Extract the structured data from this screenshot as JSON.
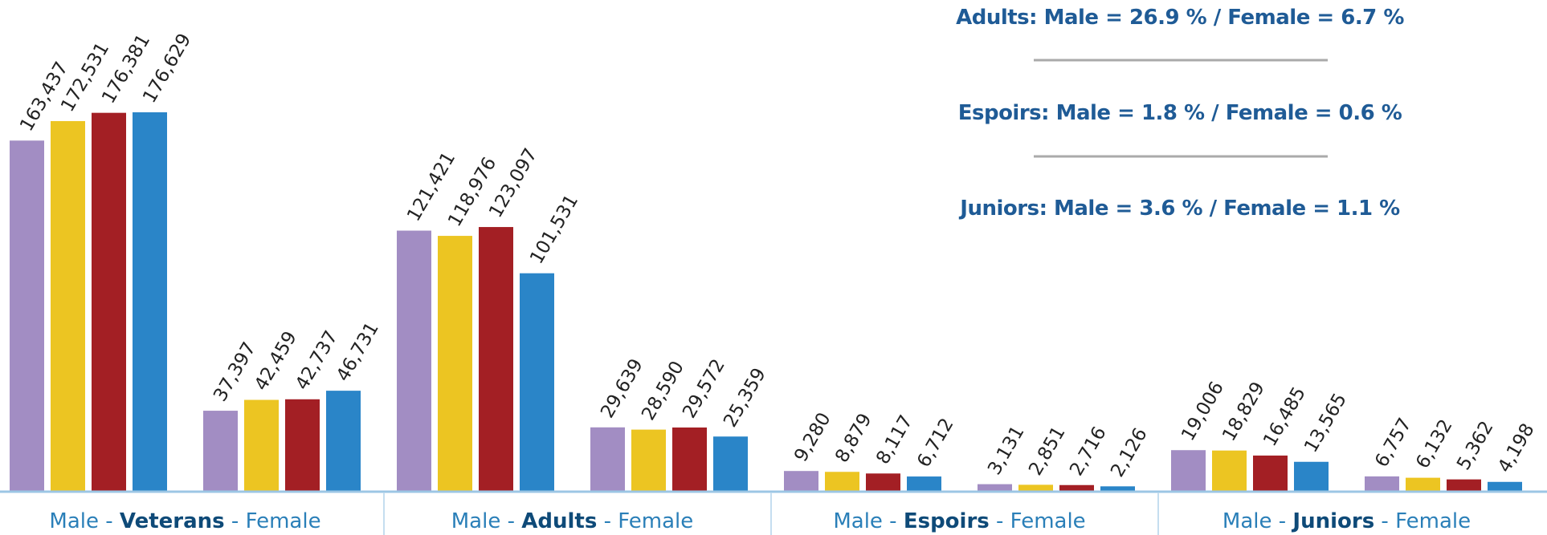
{
  "chart_data": {
    "type": "bar",
    "categories": [
      null,
      null,
      null,
      null,
      null,
      null,
      null,
      null
    ],
    "groups": [
      {
        "prefix": "Male - ",
        "name": "Veterans",
        "suffix": " - Female"
      },
      {
        "prefix": "Male - ",
        "name": "Adults",
        "suffix": " - Female"
      },
      {
        "prefix": "Male - ",
        "name": "Espoirs",
        "suffix": " - Female"
      },
      {
        "prefix": "Male - ",
        "name": "Juniors",
        "suffix": " - Female"
      }
    ],
    "annotations": [
      "Adults:  Male = 26.9 % / Female = 6.7 %",
      "Espoirs:  Male = 1.8 % / Female = 0.6 %",
      "Juniors:  Male = 3.6 % / Female = 1.1 %"
    ],
    "series": [
      {
        "color": "#a28dc3",
        "values": [
          163437,
          37397,
          121421,
          29639,
          9280,
          3131,
          19006,
          6757
        ],
        "value_labels": [
          "163,437",
          "37,397",
          "121,421",
          "29,639",
          "9,280",
          "3,131",
          "19,006",
          "6,757"
        ]
      },
      {
        "color": "#ecc522",
        "values": [
          172531,
          42459,
          118976,
          28590,
          8879,
          2851,
          18829,
          6132
        ],
        "value_labels": [
          "172,531",
          "42,459",
          "118,976",
          "28,590",
          "8,879",
          "2,851",
          "18,829",
          "6,132"
        ]
      },
      {
        "color": "#a31f24",
        "values": [
          176381,
          42737,
          123097,
          29572,
          8117,
          2716,
          16485,
          5362
        ],
        "value_labels": [
          "176,381",
          "42,737",
          "123,097",
          "29,572",
          "8,117",
          "2,716",
          "16,485",
          "5,362"
        ]
      },
      {
        "color": "#2a85c8",
        "values": [
          176629,
          46731,
          101531,
          25359,
          6712,
          2126,
          13565,
          4198
        ],
        "value_labels": [
          "176,629",
          "46,731",
          "101,531",
          "25,359",
          "6,712",
          "2,126",
          "13,565",
          "4,198"
        ]
      }
    ]
  }
}
